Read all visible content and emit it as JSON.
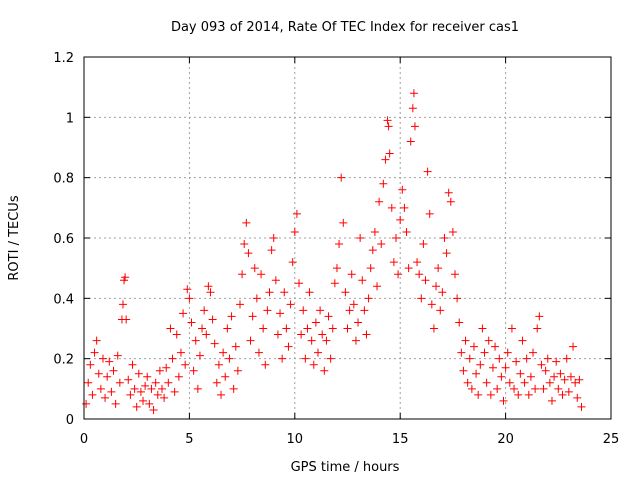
{
  "chart_data": {
    "type": "scatter",
    "title": "Day 093 of 2014, Rate Of TEC Index for receiver cas1",
    "xlabel": "GPS time / hours",
    "ylabel": "ROTI / TECUs",
    "xlim": [
      0,
      25
    ],
    "ylim": [
      0,
      1.2
    ],
    "x_ticks": [
      0,
      5,
      10,
      15,
      20,
      25
    ],
    "x_tick_labels": [
      "0",
      "5",
      "10",
      "15",
      "20",
      "25"
    ],
    "y_ticks": [
      0,
      0.2,
      0.4,
      0.6,
      0.8,
      1.0,
      1.2
    ],
    "y_tick_labels": [
      "0",
      "0.2",
      "0.4",
      "0.6",
      "0.8",
      "1",
      "1.2"
    ],
    "grid": true,
    "marker": "+",
    "series": [
      {
        "name": "ROTI",
        "color": "#ff0000",
        "points": [
          [
            0.1,
            0.05
          ],
          [
            0.2,
            0.12
          ],
          [
            0.3,
            0.18
          ],
          [
            0.4,
            0.08
          ],
          [
            0.5,
            0.22
          ],
          [
            0.6,
            0.26
          ],
          [
            0.7,
            0.15
          ],
          [
            0.8,
            0.1
          ],
          [
            0.9,
            0.2
          ],
          [
            1.0,
            0.07
          ],
          [
            1.1,
            0.14
          ],
          [
            1.2,
            0.19
          ],
          [
            1.3,
            0.09
          ],
          [
            1.4,
            0.16
          ],
          [
            1.5,
            0.05
          ],
          [
            1.6,
            0.21
          ],
          [
            1.7,
            0.12
          ],
          [
            1.8,
            0.33
          ],
          [
            1.85,
            0.38
          ],
          [
            1.9,
            0.46
          ],
          [
            1.95,
            0.47
          ],
          [
            2.0,
            0.33
          ],
          [
            2.1,
            0.13
          ],
          [
            2.2,
            0.08
          ],
          [
            2.3,
            0.18
          ],
          [
            2.4,
            0.1
          ],
          [
            2.5,
            0.04
          ],
          [
            2.6,
            0.15
          ],
          [
            2.7,
            0.09
          ],
          [
            2.8,
            0.06
          ],
          [
            2.9,
            0.11
          ],
          [
            3.0,
            0.14
          ],
          [
            3.1,
            0.05
          ],
          [
            3.2,
            0.1
          ],
          [
            3.3,
            0.03
          ],
          [
            3.4,
            0.12
          ],
          [
            3.5,
            0.08
          ],
          [
            3.6,
            0.16
          ],
          [
            3.7,
            0.1
          ],
          [
            3.8,
            0.07
          ],
          [
            3.9,
            0.17
          ],
          [
            4.0,
            0.12
          ],
          [
            4.1,
            0.3
          ],
          [
            4.2,
            0.2
          ],
          [
            4.3,
            0.09
          ],
          [
            4.4,
            0.28
          ],
          [
            4.5,
            0.14
          ],
          [
            4.6,
            0.22
          ],
          [
            4.7,
            0.35
          ],
          [
            4.8,
            0.18
          ],
          [
            4.9,
            0.43
          ],
          [
            5.0,
            0.4
          ],
          [
            5.1,
            0.32
          ],
          [
            5.2,
            0.16
          ],
          [
            5.3,
            0.26
          ],
          [
            5.4,
            0.1
          ],
          [
            5.5,
            0.21
          ],
          [
            5.6,
            0.3
          ],
          [
            5.7,
            0.36
          ],
          [
            5.8,
            0.28
          ],
          [
            5.9,
            0.44
          ],
          [
            6.0,
            0.42
          ],
          [
            6.1,
            0.33
          ],
          [
            6.2,
            0.25
          ],
          [
            6.3,
            0.12
          ],
          [
            6.4,
            0.18
          ],
          [
            6.5,
            0.08
          ],
          [
            6.6,
            0.22
          ],
          [
            6.7,
            0.14
          ],
          [
            6.8,
            0.3
          ],
          [
            6.9,
            0.2
          ],
          [
            7.0,
            0.34
          ],
          [
            7.1,
            0.1
          ],
          [
            7.2,
            0.24
          ],
          [
            7.3,
            0.16
          ],
          [
            7.4,
            0.38
          ],
          [
            7.5,
            0.48
          ],
          [
            7.6,
            0.58
          ],
          [
            7.7,
            0.65
          ],
          [
            7.8,
            0.55
          ],
          [
            7.9,
            0.26
          ],
          [
            8.0,
            0.34
          ],
          [
            8.1,
            0.5
          ],
          [
            8.2,
            0.4
          ],
          [
            8.3,
            0.22
          ],
          [
            8.4,
            0.48
          ],
          [
            8.5,
            0.3
          ],
          [
            8.6,
            0.18
          ],
          [
            8.7,
            0.36
          ],
          [
            8.8,
            0.42
          ],
          [
            8.9,
            0.56
          ],
          [
            9.0,
            0.6
          ],
          [
            9.1,
            0.46
          ],
          [
            9.2,
            0.28
          ],
          [
            9.3,
            0.35
          ],
          [
            9.4,
            0.2
          ],
          [
            9.5,
            0.42
          ],
          [
            9.6,
            0.3
          ],
          [
            9.7,
            0.24
          ],
          [
            9.8,
            0.38
          ],
          [
            9.9,
            0.52
          ],
          [
            10.0,
            0.62
          ],
          [
            10.1,
            0.68
          ],
          [
            10.2,
            0.45
          ],
          [
            10.3,
            0.28
          ],
          [
            10.4,
            0.36
          ],
          [
            10.5,
            0.2
          ],
          [
            10.6,
            0.3
          ],
          [
            10.7,
            0.42
          ],
          [
            10.8,
            0.26
          ],
          [
            10.9,
            0.18
          ],
          [
            11.0,
            0.32
          ],
          [
            11.1,
            0.22
          ],
          [
            11.2,
            0.36
          ],
          [
            11.3,
            0.28
          ],
          [
            11.4,
            0.16
          ],
          [
            11.5,
            0.26
          ],
          [
            11.6,
            0.34
          ],
          [
            11.7,
            0.2
          ],
          [
            11.8,
            0.3
          ],
          [
            11.9,
            0.45
          ],
          [
            12.0,
            0.5
          ],
          [
            12.1,
            0.58
          ],
          [
            12.2,
            0.8
          ],
          [
            12.3,
            0.65
          ],
          [
            12.4,
            0.42
          ],
          [
            12.5,
            0.3
          ],
          [
            12.6,
            0.36
          ],
          [
            12.7,
            0.48
          ],
          [
            12.8,
            0.38
          ],
          [
            12.9,
            0.26
          ],
          [
            13.0,
            0.32
          ],
          [
            13.1,
            0.6
          ],
          [
            13.2,
            0.46
          ],
          [
            13.3,
            0.36
          ],
          [
            13.4,
            0.28
          ],
          [
            13.5,
            0.4
          ],
          [
            13.6,
            0.5
          ],
          [
            13.7,
            0.56
          ],
          [
            13.8,
            0.62
          ],
          [
            13.9,
            0.44
          ],
          [
            14.0,
            0.72
          ],
          [
            14.1,
            0.58
          ],
          [
            14.2,
            0.78
          ],
          [
            14.3,
            0.86
          ],
          [
            14.4,
            0.99
          ],
          [
            14.45,
            0.97
          ],
          [
            14.5,
            0.88
          ],
          [
            14.6,
            0.7
          ],
          [
            14.7,
            0.52
          ],
          [
            14.8,
            0.6
          ],
          [
            14.9,
            0.48
          ],
          [
            15.0,
            0.66
          ],
          [
            15.1,
            0.76
          ],
          [
            15.2,
            0.7
          ],
          [
            15.3,
            0.62
          ],
          [
            15.4,
            0.5
          ],
          [
            15.5,
            0.92
          ],
          [
            15.6,
            1.03
          ],
          [
            15.65,
            1.08
          ],
          [
            15.7,
            0.97
          ],
          [
            15.8,
            0.52
          ],
          [
            15.9,
            0.48
          ],
          [
            16.0,
            0.4
          ],
          [
            16.1,
            0.58
          ],
          [
            16.2,
            0.46
          ],
          [
            16.3,
            0.82
          ],
          [
            16.4,
            0.68
          ],
          [
            16.5,
            0.38
          ],
          [
            16.6,
            0.3
          ],
          [
            16.7,
            0.44
          ],
          [
            16.8,
            0.5
          ],
          [
            16.9,
            0.36
          ],
          [
            17.0,
            0.42
          ],
          [
            17.1,
            0.6
          ],
          [
            17.2,
            0.55
          ],
          [
            17.3,
            0.75
          ],
          [
            17.4,
            0.72
          ],
          [
            17.5,
            0.62
          ],
          [
            17.6,
            0.48
          ],
          [
            17.7,
            0.4
          ],
          [
            17.8,
            0.32
          ],
          [
            17.9,
            0.22
          ],
          [
            18.0,
            0.16
          ],
          [
            18.1,
            0.26
          ],
          [
            18.2,
            0.12
          ],
          [
            18.3,
            0.2
          ],
          [
            18.4,
            0.1
          ],
          [
            18.5,
            0.24
          ],
          [
            18.6,
            0.15
          ],
          [
            18.7,
            0.08
          ],
          [
            18.8,
            0.18
          ],
          [
            18.9,
            0.3
          ],
          [
            19.0,
            0.22
          ],
          [
            19.1,
            0.12
          ],
          [
            19.2,
            0.26
          ],
          [
            19.3,
            0.08
          ],
          [
            19.4,
            0.17
          ],
          [
            19.5,
            0.24
          ],
          [
            19.6,
            0.1
          ],
          [
            19.7,
            0.2
          ],
          [
            19.8,
            0.14
          ],
          [
            19.9,
            0.06
          ],
          [
            20.0,
            0.17
          ],
          [
            20.1,
            0.22
          ],
          [
            20.2,
            0.12
          ],
          [
            20.3,
            0.3
          ],
          [
            20.4,
            0.1
          ],
          [
            20.5,
            0.19
          ],
          [
            20.6,
            0.08
          ],
          [
            20.7,
            0.15
          ],
          [
            20.8,
            0.26
          ],
          [
            20.9,
            0.12
          ],
          [
            21.0,
            0.2
          ],
          [
            21.1,
            0.08
          ],
          [
            21.2,
            0.14
          ],
          [
            21.3,
            0.22
          ],
          [
            21.4,
            0.1
          ],
          [
            21.5,
            0.3
          ],
          [
            21.6,
            0.34
          ],
          [
            21.7,
            0.18
          ],
          [
            21.8,
            0.1
          ],
          [
            21.9,
            0.16
          ],
          [
            22.0,
            0.2
          ],
          [
            22.1,
            0.12
          ],
          [
            22.2,
            0.06
          ],
          [
            22.3,
            0.14
          ],
          [
            22.4,
            0.19
          ],
          [
            22.5,
            0.1
          ],
          [
            22.6,
            0.15
          ],
          [
            22.7,
            0.08
          ],
          [
            22.8,
            0.13
          ],
          [
            22.9,
            0.2
          ],
          [
            23.0,
            0.09
          ],
          [
            23.1,
            0.14
          ],
          [
            23.2,
            0.24
          ],
          [
            23.3,
            0.12
          ],
          [
            23.4,
            0.07
          ],
          [
            23.5,
            0.13
          ],
          [
            23.6,
            0.04
          ]
        ]
      }
    ]
  }
}
